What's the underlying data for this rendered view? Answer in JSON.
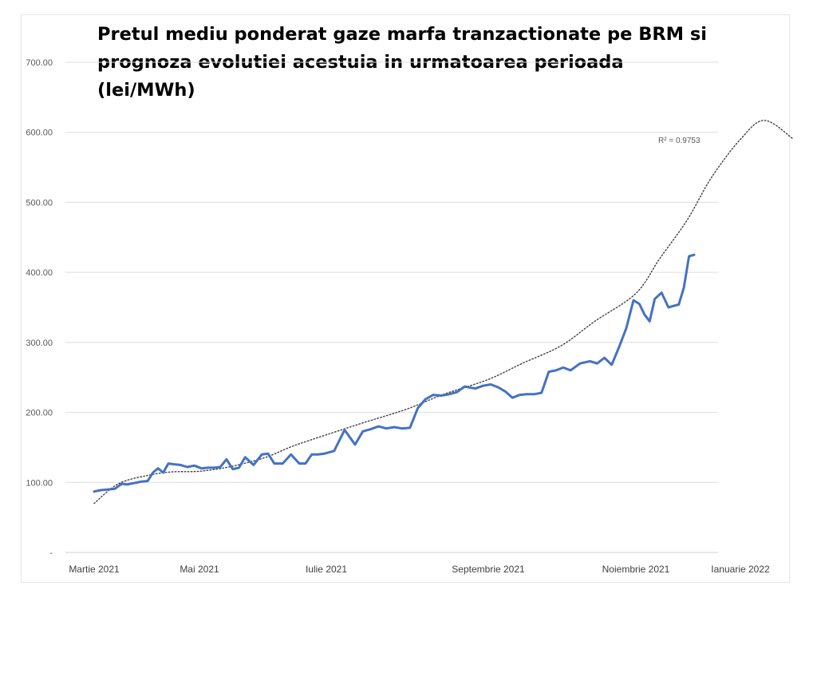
{
  "chart_data": {
    "type": "line",
    "title": "Pretul mediu ponderat gaze marfa tranzactionate pe BRM si prognoza evolutiei acestuia in urmatoarea perioada (lei/MWh)",
    "xlabel": "",
    "ylabel": "",
    "ylim": [
      0,
      700
    ],
    "y_ticks": [
      {
        "value": 0,
        "label": "-"
      },
      {
        "value": 100,
        "label": "100.00"
      },
      {
        "value": 200,
        "label": "200.00"
      },
      {
        "value": 300,
        "label": "300.00"
      },
      {
        "value": 400,
        "label": "400.00"
      },
      {
        "value": 500,
        "label": "500.00"
      },
      {
        "value": 600,
        "label": "600.00"
      },
      {
        "value": 700,
        "label": "700.00"
      }
    ],
    "x_ticks": [
      {
        "date": "2021-03-01",
        "label": "Martie 2021"
      },
      {
        "date": "2021-05-01",
        "label": "Mai 2021"
      },
      {
        "date": "2021-07-01",
        "label": "Iulie 2021"
      },
      {
        "date": "2021-09-01",
        "label": "Septembrie 2021"
      },
      {
        "date": "2021-11-01",
        "label": "Noiembrie 2021"
      },
      {
        "date": "2022-01-01",
        "label": "Ianuarie 2022"
      }
    ],
    "grid": true,
    "legend": "none",
    "series": [
      {
        "role": "actual",
        "color": "#4472c4",
        "x": [
          "2021-03-01",
          "2021-03-05",
          "2021-03-09",
          "2021-03-13",
          "2021-03-17",
          "2021-03-20",
          "2021-03-24",
          "2021-03-28",
          "2021-04-01",
          "2021-04-04",
          "2021-04-07",
          "2021-04-10",
          "2021-04-13",
          "2021-04-16",
          "2021-04-20",
          "2021-04-24",
          "2021-04-28",
          "2021-05-02",
          "2021-05-05",
          "2021-05-08",
          "2021-05-11",
          "2021-05-14",
          "2021-05-17",
          "2021-05-20",
          "2021-05-23",
          "2021-05-27",
          "2021-05-31",
          "2021-06-03",
          "2021-06-06",
          "2021-06-10",
          "2021-06-14",
          "2021-06-18",
          "2021-06-21",
          "2021-06-24",
          "2021-06-27",
          "2021-06-30",
          "2021-07-04",
          "2021-07-08",
          "2021-07-12",
          "2021-07-15",
          "2021-07-18",
          "2021-07-21",
          "2021-07-24",
          "2021-07-27",
          "2021-07-30",
          "2021-08-02",
          "2021-08-05",
          "2021-08-08",
          "2021-08-11",
          "2021-08-14",
          "2021-08-17",
          "2021-08-20",
          "2021-08-23",
          "2021-08-27",
          "2021-08-30",
          "2021-09-02",
          "2021-09-05",
          "2021-09-08",
          "2021-09-11",
          "2021-09-14",
          "2021-09-17",
          "2021-09-20",
          "2021-09-23",
          "2021-09-26",
          "2021-09-29",
          "2021-10-02",
          "2021-10-05",
          "2021-10-09",
          "2021-10-13",
          "2021-10-16",
          "2021-10-19",
          "2021-10-22",
          "2021-10-25"
        ],
        "values": [
          87,
          89,
          90,
          91,
          98,
          97,
          99,
          101,
          102,
          114,
          120,
          114,
          127,
          126,
          125,
          122,
          124,
          120,
          121,
          121,
          122,
          133,
          119,
          121,
          136,
          125,
          140,
          141,
          127,
          127,
          140,
          127,
          127,
          140,
          140,
          141,
          145,
          175,
          154,
          173,
          176,
          180,
          177,
          179,
          177,
          178,
          206,
          219,
          225,
          224,
          226,
          229,
          237,
          234,
          238,
          240,
          236,
          230,
          221,
          225,
          226,
          226,
          228,
          258,
          260,
          264,
          260,
          270,
          273,
          270,
          278,
          268,
          293
        ]
      },
      {
        "role": "actual-continued",
        "color": "#4472c4",
        "x": [
          "2021-10-25",
          "2021-10-28",
          "2021-10-31",
          "2021-11-03",
          "2021-11-06",
          "2021-11-09",
          "2021-11-12",
          "2021-11-16",
          "2021-11-20",
          "2021-11-23",
          "2021-11-26"
        ],
        "values": [
          293,
          320,
          360,
          355,
          340,
          330,
          362,
          371,
          350,
          352,
          354
        ]
      },
      {
        "role": "actual-end",
        "color": "#4472c4",
        "x": [
          "2021-11-26",
          "2021-11-29",
          "2021-12-02",
          "2021-12-05"
        ],
        "values": [
          354,
          378,
          423,
          425
        ]
      }
    ],
    "trendline": {
      "type": "polynomial",
      "color": "#404040",
      "r_squared_label": "R² = 0.9753",
      "x": [
        "2021-03-01",
        "2021-03-15",
        "2021-04-01",
        "2021-04-15",
        "2021-05-01",
        "2021-05-15",
        "2021-06-01",
        "2021-06-15",
        "2021-07-01",
        "2021-07-15",
        "2021-08-01",
        "2021-08-15",
        "2021-09-01",
        "2021-09-15",
        "2021-10-01",
        "2021-10-15",
        "2021-11-01",
        "2021-11-15",
        "2021-12-01",
        "2021-12-15",
        "2022-01-01",
        "2022-01-15",
        "2022-02-01"
      ],
      "values": [
        70,
        98,
        110,
        115,
        116,
        122,
        135,
        152,
        168,
        185,
        205,
        226,
        247,
        270,
        295,
        330,
        370,
        420,
        475,
        535,
        590,
        617,
        590
      ]
    }
  }
}
